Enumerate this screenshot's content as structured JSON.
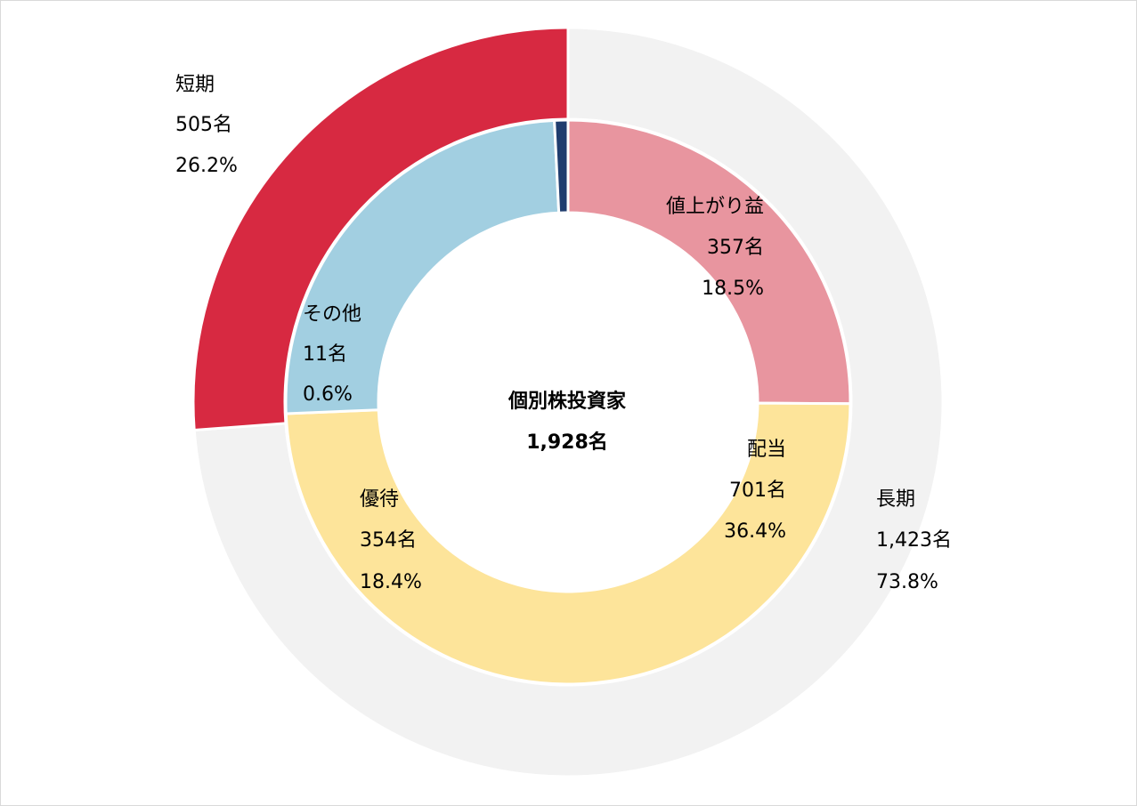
{
  "chart_data": {
    "type": "pie",
    "style": "nested-donut",
    "center": {
      "title": "個別株投資家",
      "total": "1,928名"
    },
    "outer_ring": [
      {
        "name": "長期",
        "count": 1423,
        "count_label": "1,423名",
        "percent": 73.8,
        "percent_label": "73.8%",
        "color": "#f2f2f2"
      },
      {
        "name": "短期",
        "count": 505,
        "count_label": "505名",
        "percent": 26.2,
        "percent_label": "26.2%",
        "color": "#d72941"
      }
    ],
    "inner_ring": [
      {
        "name": "値上がり益",
        "count": 357,
        "count_label": "357名",
        "percent": 18.5,
        "percent_label": "18.5%",
        "color": "#e8959f"
      },
      {
        "name": "配当",
        "count": 701,
        "count_label": "701名",
        "percent": 36.4,
        "percent_label": "36.4%",
        "color": "#fde49a"
      },
      {
        "name": "優待",
        "count": 354,
        "count_label": "354名",
        "percent": 18.4,
        "percent_label": "18.4%",
        "color": "#a2cfe1"
      },
      {
        "name": "その他",
        "count": 11,
        "count_label": "11名",
        "percent": 0.6,
        "percent_label": "0.6%",
        "color": "#1f3d6e"
      }
    ]
  }
}
